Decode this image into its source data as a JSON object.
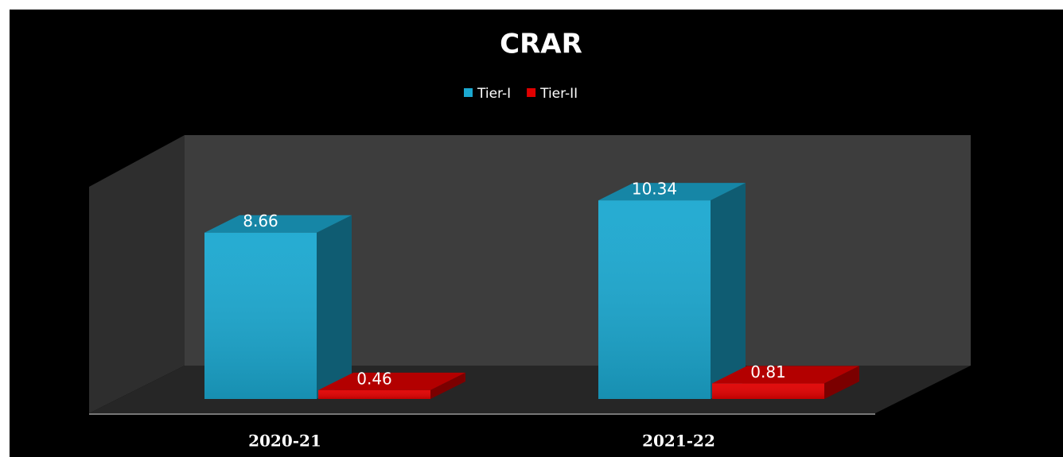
{
  "chart_data": {
    "type": "bar3d",
    "title": "CRAR",
    "categories": [
      "2020-21",
      "2021-22"
    ],
    "series": [
      {
        "name": "Tier-I",
        "color": "#1ba8d0",
        "values": [
          8.66,
          10.34
        ]
      },
      {
        "name": "Tier-II",
        "color": "#e00000",
        "values": [
          0.46,
          0.81
        ]
      }
    ],
    "ylim": [
      0,
      12
    ],
    "legend": "top"
  }
}
